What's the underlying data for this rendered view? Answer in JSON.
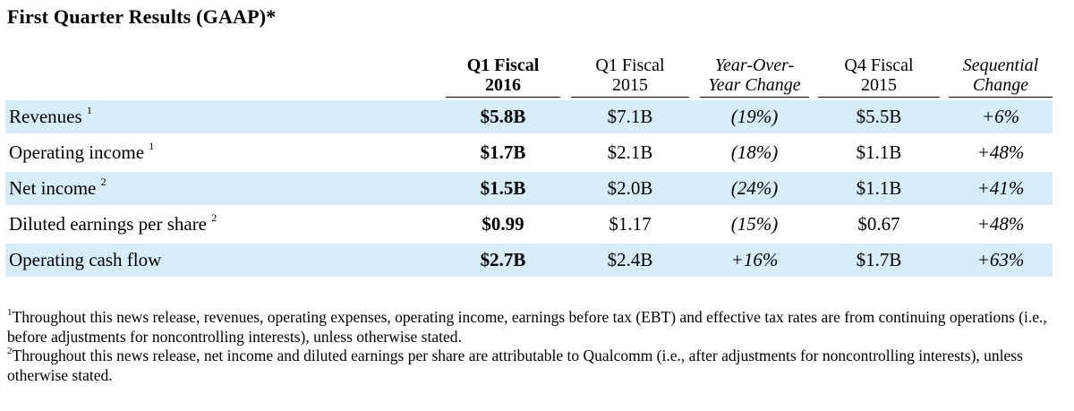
{
  "title": "First Quarter Results (GAAP)*",
  "columns": [
    {
      "line1": "Q1 Fiscal",
      "line2": "2016"
    },
    {
      "line1": "Q1 Fiscal",
      "line2": "2015"
    },
    {
      "line1": "Year-Over-",
      "line2": "Year Change"
    },
    {
      "line1": "Q4 Fiscal",
      "line2": "2015"
    },
    {
      "line1": "Sequential",
      "line2": "Change"
    }
  ],
  "rows": [
    {
      "label": "Revenues",
      "note": "1",
      "values": [
        "$5.8B",
        "$7.1B",
        "(19%)",
        "$5.5B",
        "+6%"
      ]
    },
    {
      "label": "Operating income",
      "note": "1",
      "values": [
        "$1.7B",
        "$2.1B",
        "(18%)",
        "$1.1B",
        "+48%"
      ]
    },
    {
      "label": "Net income",
      "note": "2",
      "values": [
        "$1.5B",
        "$2.0B",
        "(24%)",
        "$1.1B",
        "+41%"
      ]
    },
    {
      "label": "Diluted earnings per share",
      "note": "2",
      "values": [
        "$0.99",
        "$1.17",
        "(15%)",
        "$0.67",
        "+48%"
      ]
    },
    {
      "label": "Operating cash flow",
      "note": "",
      "values": [
        "$2.7B",
        "$2.4B",
        "+16%",
        "$1.7B",
        "+63%"
      ]
    }
  ],
  "footnotes": [
    {
      "mark": "1",
      "text": "Throughout this news release, revenues, operating expenses, operating income, earnings before tax (EBT) and effective tax rates are from continuing operations (i.e., before adjustments for noncontrolling interests), unless otherwise stated."
    },
    {
      "mark": "2",
      "text": "Throughout this news release, net income and diluted earnings per share are attributable to Qualcomm (i.e., after adjustments for noncontrolling interests), unless otherwise stated."
    }
  ],
  "colors": {
    "row_shade": "#d7eefa"
  }
}
